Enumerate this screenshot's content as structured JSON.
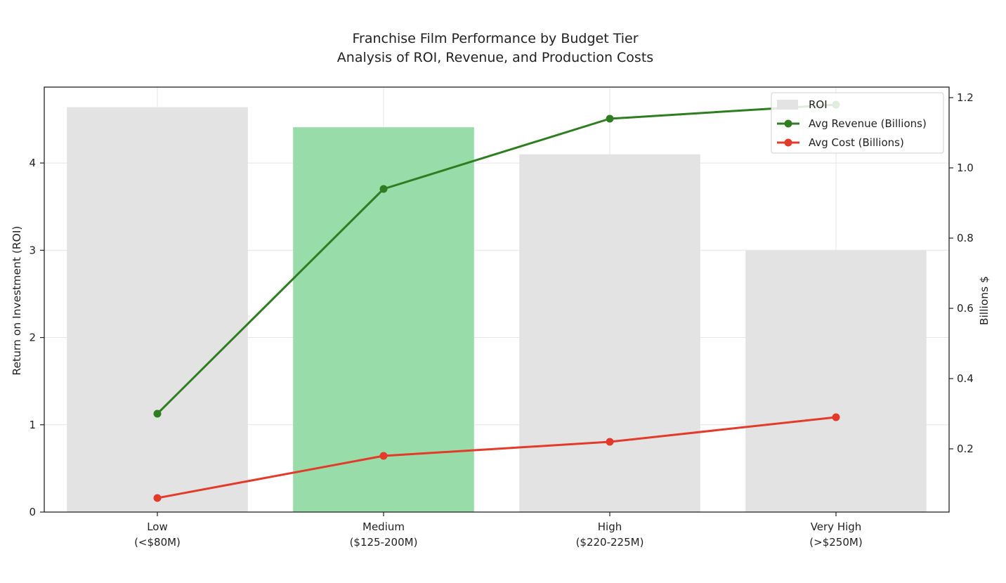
{
  "chart_data": {
    "type": "bar",
    "title": "Franchise Film Performance by Budget Tier",
    "subtitle": "Analysis of ROI, Revenue, and Production Costs",
    "categories": [
      [
        "Low",
        "(<$80M)"
      ],
      [
        "Medium",
        "($125-200M)"
      ],
      [
        "High",
        "($220-225M)"
      ],
      [
        "Very High",
        "(>$250M)"
      ]
    ],
    "ylabel_left": "Return on Investment (ROI)",
    "ylabel_right": "Billions $",
    "ylim_left": [
      0,
      4.87
    ],
    "ylim_right": [
      0.02,
      1.23
    ],
    "yticks_left": [
      "0",
      "1",
      "2",
      "3",
      "4"
    ],
    "yticks_right": [
      "0.2",
      "0.4",
      "0.6",
      "0.8",
      "1.0",
      "1.2"
    ],
    "grid": true,
    "legend_position": "top-right",
    "series": [
      {
        "name": "ROI",
        "kind": "bar",
        "axis": "left",
        "values": [
          4.64,
          4.41,
          4.1,
          3.0
        ],
        "colors": [
          "#e3e3e3",
          "#98dca9",
          "#e3e3e3",
          "#e3e3e3"
        ]
      },
      {
        "name": "Avg Revenue (Billions)",
        "kind": "line",
        "axis": "right",
        "values": [
          0.3,
          0.94,
          1.14,
          1.18
        ],
        "color": "#2e7d20"
      },
      {
        "name": "Avg Cost (Billions)",
        "kind": "line",
        "axis": "right",
        "values": [
          0.06,
          0.18,
          0.22,
          0.29
        ],
        "color": "#e33a2a"
      }
    ]
  }
}
